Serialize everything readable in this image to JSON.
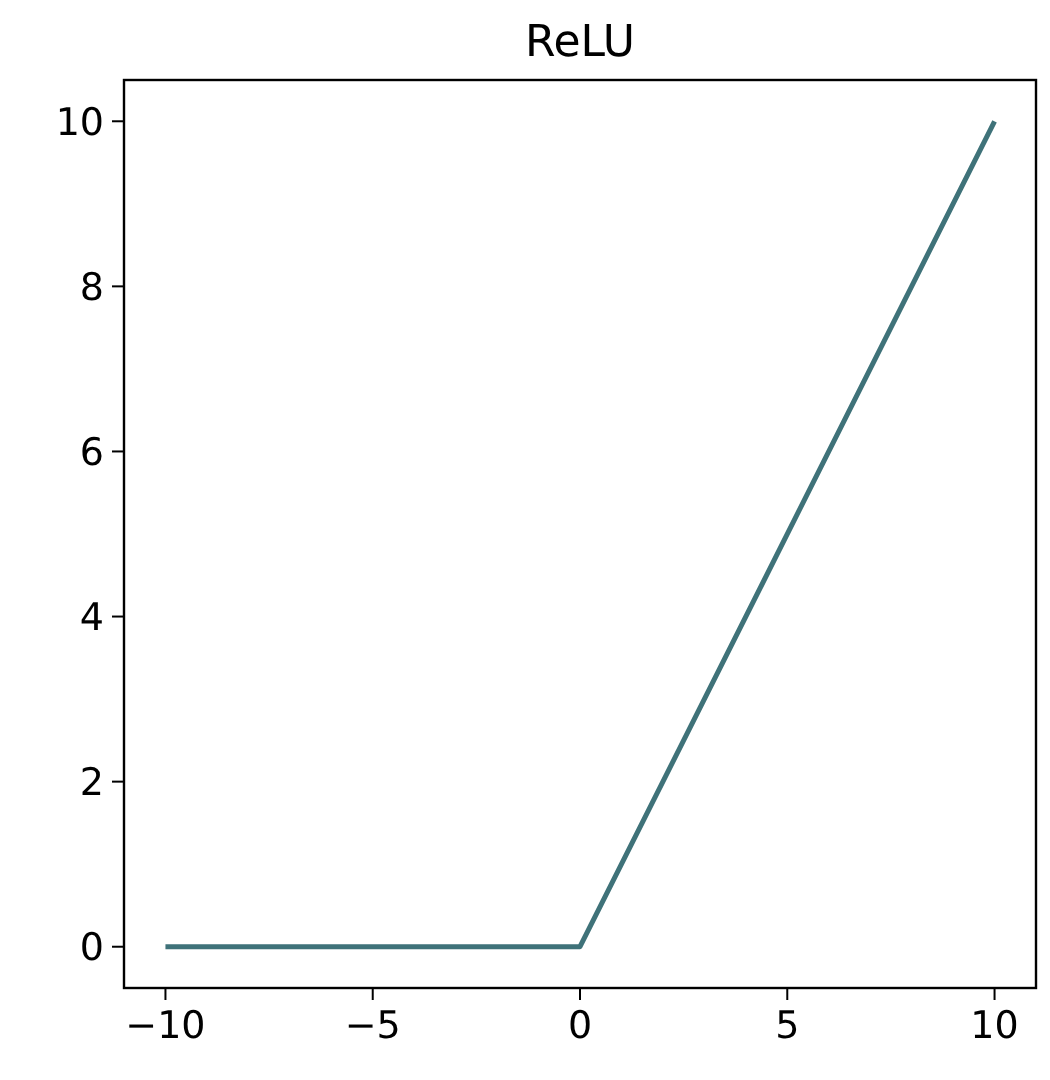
{
  "chart_data": {
    "type": "line",
    "title": "ReLU",
    "x": [
      -10,
      0,
      10
    ],
    "series": [
      {
        "color": "#3f7279",
        "values": [
          0,
          0,
          10
        ]
      }
    ],
    "xlim": [
      -11,
      11
    ],
    "xticks": [
      {
        "value": -10,
        "label": "−10"
      },
      {
        "value": -5,
        "label": "−5"
      },
      0,
      5,
      10
    ],
    "ylim": [
      -0.5,
      10.5
    ],
    "yticks": [
      0,
      2,
      4,
      6,
      8,
      10
    ],
    "marker": "none",
    "line_style": "solid"
  }
}
